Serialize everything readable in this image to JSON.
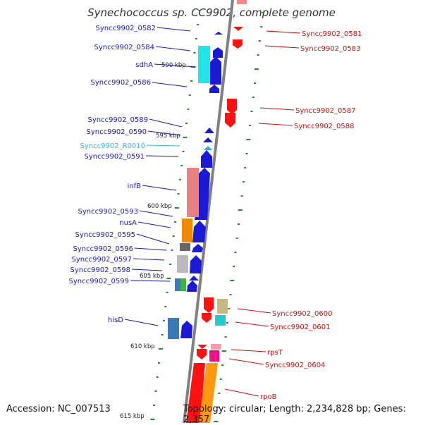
{
  "title": "Synechococcus sp. CC9902, complete genome",
  "footer": {
    "accession": "Accession: NC_007513",
    "topology": "Topology: circular; Length: 2,234,828 bp; Genes: 2,357"
  },
  "ticks": [
    "590 kbp",
    "595 kbp",
    "600 kbp",
    "605 kbp",
    "610 kbp",
    "615 kbp"
  ],
  "left_labels": [
    {
      "text": "Syncc9902_0582",
      "color": "#1a1aa6"
    },
    {
      "text": "Syncc9902_0584",
      "color": "#1a1aa6"
    },
    {
      "text": "sdhA",
      "color": "#1a1aa6"
    },
    {
      "text": "Syncc9902_0586",
      "color": "#1a1aa6"
    },
    {
      "text": "Syncc9902_0589",
      "color": "#1a1aa6"
    },
    {
      "text": "Syncc9902_0590",
      "color": "#1a1aa6"
    },
    {
      "text": "Syncc9902_R0010",
      "color": "#33b5e5"
    },
    {
      "text": "Syncc9902_0591",
      "color": "#1a1aa6"
    },
    {
      "text": "infB",
      "color": "#1a1aa6"
    },
    {
      "text": "Syncc9902_0593",
      "color": "#1a1aa6"
    },
    {
      "text": "nusA",
      "color": "#1a1aa6"
    },
    {
      "text": "Syncc9902_0595",
      "color": "#1a1aa6"
    },
    {
      "text": "Syncc9902_0596",
      "color": "#1a1aa6"
    },
    {
      "text": "Syncc9902_0597",
      "color": "#1a1aa6"
    },
    {
      "text": "Syncc9902_0598",
      "color": "#1a1aa6"
    },
    {
      "text": "Syncc9902_0599",
      "color": "#1a1aa6"
    },
    {
      "text": "hisD",
      "color": "#1a1aa6"
    }
  ],
  "right_labels": [
    {
      "text": "Syncc9902_0581",
      "color": "#cc1111"
    },
    {
      "text": "Syncc9902_0583",
      "color": "#cc1111"
    },
    {
      "text": "Syncc9902_0587",
      "color": "#cc1111"
    },
    {
      "text": "Syncc9902_0588",
      "color": "#cc1111"
    },
    {
      "text": "Syncc9902_0600",
      "color": "#cc1111"
    },
    {
      "text": "Syncc9902_0601",
      "color": "#cc1111"
    },
    {
      "text": "rpsT",
      "color": "#cc1111"
    },
    {
      "text": "Syncc9902_0604",
      "color": "#cc1111"
    },
    {
      "text": "rpoB",
      "color": "#cc1111"
    }
  ]
}
